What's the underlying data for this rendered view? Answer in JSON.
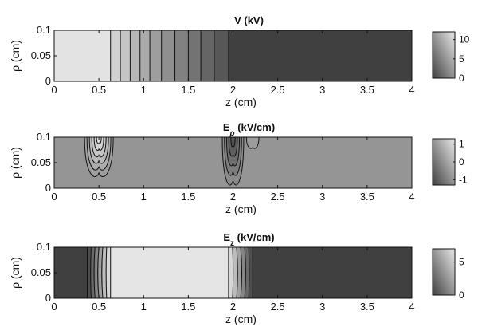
{
  "figure": {
    "xlabel": "z (cm)",
    "ylabel": "ρ (cm)"
  },
  "chart_data": [
    {
      "type": "heatmap",
      "title": "V (kV)",
      "title_main": "V",
      "title_sub": "",
      "title_units": " (kV)",
      "xlabel": "z (cm)",
      "ylabel": "ρ (cm)",
      "xlim": [
        0,
        4
      ],
      "ylim": [
        0,
        0.1
      ],
      "xticks": [
        0,
        0.5,
        1,
        1.5,
        2,
        2.5,
        3,
        3.5,
        4
      ],
      "xtick_labels": [
        "0",
        "0.5",
        "1",
        "1.5",
        "2",
        "2.5",
        "3",
        "3.5",
        "4"
      ],
      "yticks": [
        0,
        0.05,
        0.1
      ],
      "ytick_labels": [
        "0",
        "0.05",
        "0.1"
      ],
      "colorbar": {
        "min": 0,
        "max": 12,
        "ticks": [
          0,
          5,
          10
        ],
        "tick_labels": [
          "0",
          "5",
          "10"
        ]
      },
      "bands": [
        {
          "z0": 0,
          "z1": 0.63,
          "value": 11.5
        },
        {
          "z0": 0.63,
          "z1": 0.74,
          "value": 10.2
        },
        {
          "z0": 0.74,
          "z1": 0.85,
          "value": 9.3
        },
        {
          "z0": 0.85,
          "z1": 0.96,
          "value": 8.4
        },
        {
          "z0": 0.96,
          "z1": 1.07,
          "value": 7.5
        },
        {
          "z0": 1.07,
          "z1": 1.2,
          "value": 6.6
        },
        {
          "z0": 1.2,
          "z1": 1.35,
          "value": 5.6
        },
        {
          "z0": 1.35,
          "z1": 1.5,
          "value": 4.6
        },
        {
          "z0": 1.5,
          "z1": 1.64,
          "value": 3.6
        },
        {
          "z0": 1.64,
          "z1": 1.79,
          "value": 2.6
        },
        {
          "z0": 1.79,
          "z1": 1.95,
          "value": 1.6
        },
        {
          "z0": 1.95,
          "z1": 4,
          "value": 0
        }
      ],
      "contour_lines_z": [
        0.63,
        0.74,
        0.85,
        0.96,
        1.07,
        1.2,
        1.35,
        1.5,
        1.64,
        1.79,
        1.95
      ]
    },
    {
      "type": "heatmap",
      "title": "E_ρ (kV/cm)",
      "title_main": "E",
      "title_sub": "ρ",
      "title_units": " (kV/cm)",
      "xlabel": "z (cm)",
      "ylabel": "ρ (cm)",
      "xlim": [
        0,
        4
      ],
      "ylim": [
        0,
        0.1
      ],
      "xticks": [
        0,
        0.5,
        1,
        1.5,
        2,
        2.5,
        3,
        3.5,
        4
      ],
      "xtick_labels": [
        "0",
        "0.5",
        "1",
        "1.5",
        "2",
        "2.5",
        "3",
        "3.5",
        "4"
      ],
      "yticks": [
        0,
        0.05,
        0.1
      ],
      "ytick_labels": [
        "0",
        "0.05",
        "0.1"
      ],
      "colorbar": {
        "min": -1.3,
        "max": 1.3,
        "ticks": [
          -1,
          0,
          1
        ],
        "tick_labels": [
          "-1",
          "0",
          "1"
        ]
      },
      "background_value": 0,
      "features": [
        {
          "z": 0.5,
          "rho_top": 0.1,
          "value": 1.2,
          "levels": [
            0.15,
            0.35,
            0.55,
            0.75,
            0.95,
            1.1
          ],
          "half_width": 0.16,
          "depth": 0.07
        },
        {
          "z": 2.0,
          "rho_top": 0.1,
          "value": -1.2,
          "levels": [
            -0.15,
            -0.35,
            -0.6,
            -0.85,
            -1.05
          ],
          "half_width": 0.12,
          "depth": 0.085
        },
        {
          "z": 2.22,
          "rho_top": 0.1,
          "value": 0.15,
          "levels": [
            0.1
          ],
          "half_width": 0.07,
          "depth": 0.02
        }
      ]
    },
    {
      "type": "heatmap",
      "title": "E_z (kV/cm)",
      "title_main": "E",
      "title_sub": "z",
      "title_units": " (kV/cm)",
      "xlabel": "z (cm)",
      "ylabel": "ρ (cm)",
      "xlim": [
        0,
        4
      ],
      "ylim": [
        0,
        0.1
      ],
      "xticks": [
        0,
        0.5,
        1,
        1.5,
        2,
        2.5,
        3,
        3.5,
        4
      ],
      "xtick_labels": [
        "0",
        "0.5",
        "1",
        "1.5",
        "2",
        "2.5",
        "3",
        "3.5",
        "4"
      ],
      "yticks": [
        0,
        0.05,
        0.1
      ],
      "ytick_labels": [
        "0",
        "0.05",
        "0.1"
      ],
      "colorbar": {
        "min": 0,
        "max": 7,
        "ticks": [
          0,
          5
        ],
        "tick_labels": [
          "0",
          "5"
        ]
      },
      "background_value": 0,
      "plateau": {
        "z0": 0.63,
        "z1": 1.95,
        "value": 6.8
      },
      "rise_edge": {
        "z0": 0.37,
        "z1": 0.63
      },
      "fall_edge": {
        "z0": 1.95,
        "z1": 2.22
      },
      "edge_levels": 6
    }
  ]
}
